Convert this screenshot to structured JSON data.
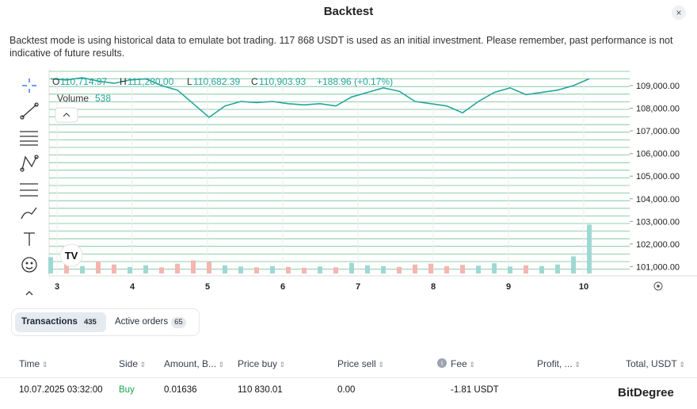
{
  "header": {
    "title": "Backtest",
    "close": "×"
  },
  "description": "Backtest mode is using historical data to emulate bot trading. 117 868 USDT is used as an initial investment. Please remember, past performance is not indicative of future results.",
  "chart": {
    "legend": {
      "o_label": "O",
      "o": "110,714.97",
      "h_label": "H",
      "h": "111,280.00",
      "l_label": "L",
      "l": "110,682.39",
      "c_label": "C",
      "c": "110,903.93",
      "change": "+188.96 (+0.17%)",
      "volume_label": "Volume",
      "volume": "538"
    },
    "ylim": [
      100700,
      109700
    ],
    "yticks": [
      {
        "value": 101000,
        "label": "101,000.00"
      },
      {
        "value": 102000,
        "label": "102,000.00"
      },
      {
        "value": 103000,
        "label": "103,000.00"
      },
      {
        "value": 104000,
        "label": "104,000.00"
      },
      {
        "value": 105000,
        "label": "105,000.00"
      },
      {
        "value": 106000,
        "label": "106,000.00"
      },
      {
        "value": 107000,
        "label": "107,000.00"
      },
      {
        "value": 108000,
        "label": "108,000.00"
      },
      {
        "value": 109000,
        "label": "109,000.00"
      }
    ],
    "xticks": [
      "3",
      "4",
      "5",
      "6",
      "7",
      "8",
      "9",
      "10"
    ],
    "close": [
      109300,
      109250,
      109350,
      109200,
      109100,
      109250,
      109300,
      109000,
      108800,
      108200,
      107600,
      108100,
      108300,
      108250,
      108300,
      108200,
      108150,
      108200,
      108100,
      108500,
      108700,
      108900,
      108750,
      108300,
      108200,
      108100,
      107800,
      108300,
      108700,
      108900,
      108600,
      108700,
      108800,
      109000,
      109300
    ],
    "volume": [
      4000,
      2500,
      1800,
      3000,
      2200,
      1600,
      2000,
      1500,
      2400,
      3200,
      2800,
      2000,
      1700,
      1500,
      1800,
      1600,
      1400,
      1700,
      1500,
      2600,
      2000,
      1800,
      1600,
      2200,
      2400,
      1800,
      2100,
      1900,
      2500,
      1700,
      2000,
      1800,
      2200,
      4200,
      12000
    ],
    "vlim": [
      0,
      15000
    ],
    "color": "#26a69a"
  },
  "tabs": [
    {
      "label": "Transactions",
      "count": "435"
    },
    {
      "label": "Active orders",
      "count": "65"
    }
  ],
  "table": {
    "headers": [
      "Time",
      "Side",
      "Amount, B...",
      "Price buy",
      "Price sell",
      "Fee",
      "Profit, ...",
      "Total, USDT"
    ],
    "rows": [
      [
        "10.07.2025 03:32:00",
        "Buy",
        "0.01636",
        "110 830.01",
        "0.00",
        "-1.81 USDT"
      ]
    ]
  },
  "watermark": "BitDegree"
}
